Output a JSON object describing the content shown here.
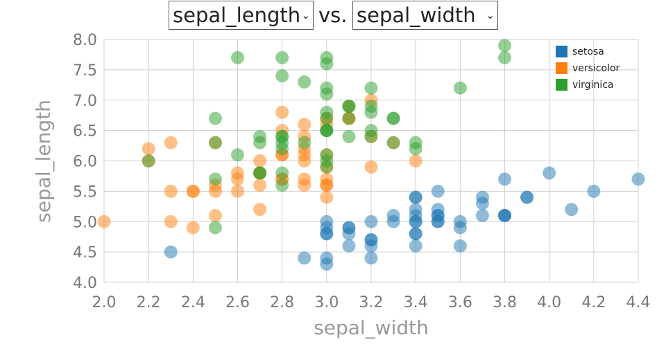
{
  "header": {
    "y_select_value": "sepal_length",
    "vs_label": "vs.",
    "x_select_value": "sepal_width"
  },
  "chart_data": {
    "type": "scatter",
    "xlabel": "sepal_width",
    "ylabel": "sepal_length",
    "xlim": [
      2.0,
      4.4
    ],
    "ylim": [
      4.0,
      8.0
    ],
    "x_ticks": [
      "2.0",
      "2.2",
      "2.4",
      "2.6",
      "2.8",
      "3.0",
      "3.2",
      "3.4",
      "3.6",
      "3.8",
      "4.0",
      "4.2",
      "4.4"
    ],
    "y_ticks": [
      "4.0",
      "4.5",
      "5.0",
      "5.5",
      "6.0",
      "6.5",
      "7.0",
      "7.5",
      "8.0"
    ],
    "grid": true,
    "legend_position": "top-right",
    "series": [
      {
        "name": "setosa",
        "color": "#1f77b4",
        "points": [
          [
            3.5,
            5.1
          ],
          [
            3.0,
            4.9
          ],
          [
            3.2,
            4.7
          ],
          [
            3.1,
            4.6
          ],
          [
            3.6,
            5.0
          ],
          [
            3.9,
            5.4
          ],
          [
            3.4,
            4.6
          ],
          [
            3.4,
            5.0
          ],
          [
            2.9,
            4.4
          ],
          [
            3.1,
            4.9
          ],
          [
            3.7,
            5.4
          ],
          [
            3.4,
            4.8
          ],
          [
            3.0,
            4.8
          ],
          [
            3.0,
            4.3
          ],
          [
            4.0,
            5.8
          ],
          [
            4.4,
            5.7
          ],
          [
            3.9,
            5.4
          ],
          [
            3.5,
            5.1
          ],
          [
            3.8,
            5.7
          ],
          [
            3.8,
            5.1
          ],
          [
            3.4,
            5.4
          ],
          [
            3.7,
            5.1
          ],
          [
            3.6,
            4.6
          ],
          [
            3.3,
            5.1
          ],
          [
            3.4,
            4.8
          ],
          [
            3.0,
            5.0
          ],
          [
            3.4,
            5.0
          ],
          [
            3.5,
            5.2
          ],
          [
            3.4,
            5.2
          ],
          [
            3.2,
            4.7
          ],
          [
            3.1,
            4.8
          ],
          [
            3.4,
            5.4
          ],
          [
            4.1,
            5.2
          ],
          [
            4.2,
            5.5
          ],
          [
            3.1,
            4.9
          ],
          [
            3.2,
            5.0
          ],
          [
            3.5,
            5.5
          ],
          [
            3.6,
            4.9
          ],
          [
            3.0,
            4.4
          ],
          [
            3.4,
            5.1
          ],
          [
            3.5,
            5.0
          ],
          [
            2.3,
            4.5
          ],
          [
            3.2,
            4.4
          ],
          [
            3.5,
            5.0
          ],
          [
            3.8,
            5.1
          ],
          [
            3.0,
            4.8
          ],
          [
            3.8,
            5.1
          ],
          [
            3.2,
            4.6
          ],
          [
            3.7,
            5.3
          ],
          [
            3.3,
            5.0
          ]
        ]
      },
      {
        "name": "versicolor",
        "color": "#ff7f0e",
        "points": [
          [
            3.2,
            7.0
          ],
          [
            3.2,
            6.4
          ],
          [
            3.1,
            6.9
          ],
          [
            2.3,
            5.5
          ],
          [
            2.8,
            6.5
          ],
          [
            2.8,
            5.7
          ],
          [
            3.3,
            6.3
          ],
          [
            2.4,
            4.9
          ],
          [
            2.9,
            6.6
          ],
          [
            2.7,
            5.2
          ],
          [
            2.0,
            5.0
          ],
          [
            3.0,
            5.9
          ],
          [
            2.2,
            6.0
          ],
          [
            2.9,
            6.1
          ],
          [
            2.9,
            5.6
          ],
          [
            3.1,
            6.7
          ],
          [
            3.0,
            5.6
          ],
          [
            2.7,
            5.8
          ],
          [
            2.2,
            6.2
          ],
          [
            2.5,
            5.6
          ],
          [
            3.2,
            5.9
          ],
          [
            2.8,
            6.1
          ],
          [
            2.5,
            6.3
          ],
          [
            2.8,
            6.1
          ],
          [
            2.9,
            6.4
          ],
          [
            3.0,
            6.6
          ],
          [
            2.8,
            6.8
          ],
          [
            3.0,
            6.7
          ],
          [
            2.9,
            6.0
          ],
          [
            2.6,
            5.7
          ],
          [
            2.4,
            5.5
          ],
          [
            2.4,
            5.5
          ],
          [
            2.7,
            5.8
          ],
          [
            2.7,
            6.0
          ],
          [
            3.0,
            5.4
          ],
          [
            3.4,
            6.0
          ],
          [
            3.1,
            6.7
          ],
          [
            2.3,
            6.3
          ],
          [
            3.0,
            5.6
          ],
          [
            2.5,
            5.5
          ],
          [
            2.6,
            5.5
          ],
          [
            3.0,
            6.1
          ],
          [
            2.6,
            5.8
          ],
          [
            2.3,
            5.0
          ],
          [
            2.7,
            5.6
          ],
          [
            3.0,
            5.7
          ],
          [
            2.9,
            5.7
          ],
          [
            2.9,
            6.2
          ],
          [
            2.5,
            5.1
          ],
          [
            2.8,
            5.7
          ]
        ]
      },
      {
        "name": "virginica",
        "color": "#2ca02c",
        "points": [
          [
            3.3,
            6.3
          ],
          [
            2.7,
            5.8
          ],
          [
            3.0,
            7.1
          ],
          [
            2.9,
            6.3
          ],
          [
            3.0,
            6.5
          ],
          [
            3.0,
            7.6
          ],
          [
            2.5,
            4.9
          ],
          [
            2.9,
            7.3
          ],
          [
            2.5,
            6.7
          ],
          [
            3.6,
            7.2
          ],
          [
            3.2,
            6.5
          ],
          [
            2.7,
            6.4
          ],
          [
            3.0,
            6.8
          ],
          [
            2.5,
            5.7
          ],
          [
            2.8,
            5.8
          ],
          [
            3.2,
            6.4
          ],
          [
            3.0,
            6.5
          ],
          [
            3.8,
            7.7
          ],
          [
            2.6,
            7.7
          ],
          [
            2.2,
            6.0
          ],
          [
            3.2,
            6.9
          ],
          [
            2.8,
            5.6
          ],
          [
            2.8,
            7.7
          ],
          [
            2.7,
            6.3
          ],
          [
            3.3,
            6.7
          ],
          [
            3.2,
            7.2
          ],
          [
            2.8,
            6.2
          ],
          [
            3.0,
            6.1
          ],
          [
            2.8,
            6.4
          ],
          [
            3.0,
            7.2
          ],
          [
            2.8,
            7.4
          ],
          [
            3.8,
            7.9
          ],
          [
            2.8,
            6.4
          ],
          [
            2.8,
            6.3
          ],
          [
            2.6,
            6.1
          ],
          [
            3.0,
            7.7
          ],
          [
            3.4,
            6.3
          ],
          [
            3.1,
            6.4
          ],
          [
            3.0,
            6.0
          ],
          [
            3.1,
            6.9
          ],
          [
            3.1,
            6.7
          ],
          [
            3.1,
            6.9
          ],
          [
            2.7,
            5.8
          ],
          [
            3.2,
            6.8
          ],
          [
            3.3,
            6.7
          ],
          [
            3.0,
            6.7
          ],
          [
            2.5,
            6.3
          ],
          [
            3.0,
            6.5
          ],
          [
            3.4,
            6.2
          ],
          [
            3.0,
            5.9
          ]
        ]
      }
    ]
  }
}
